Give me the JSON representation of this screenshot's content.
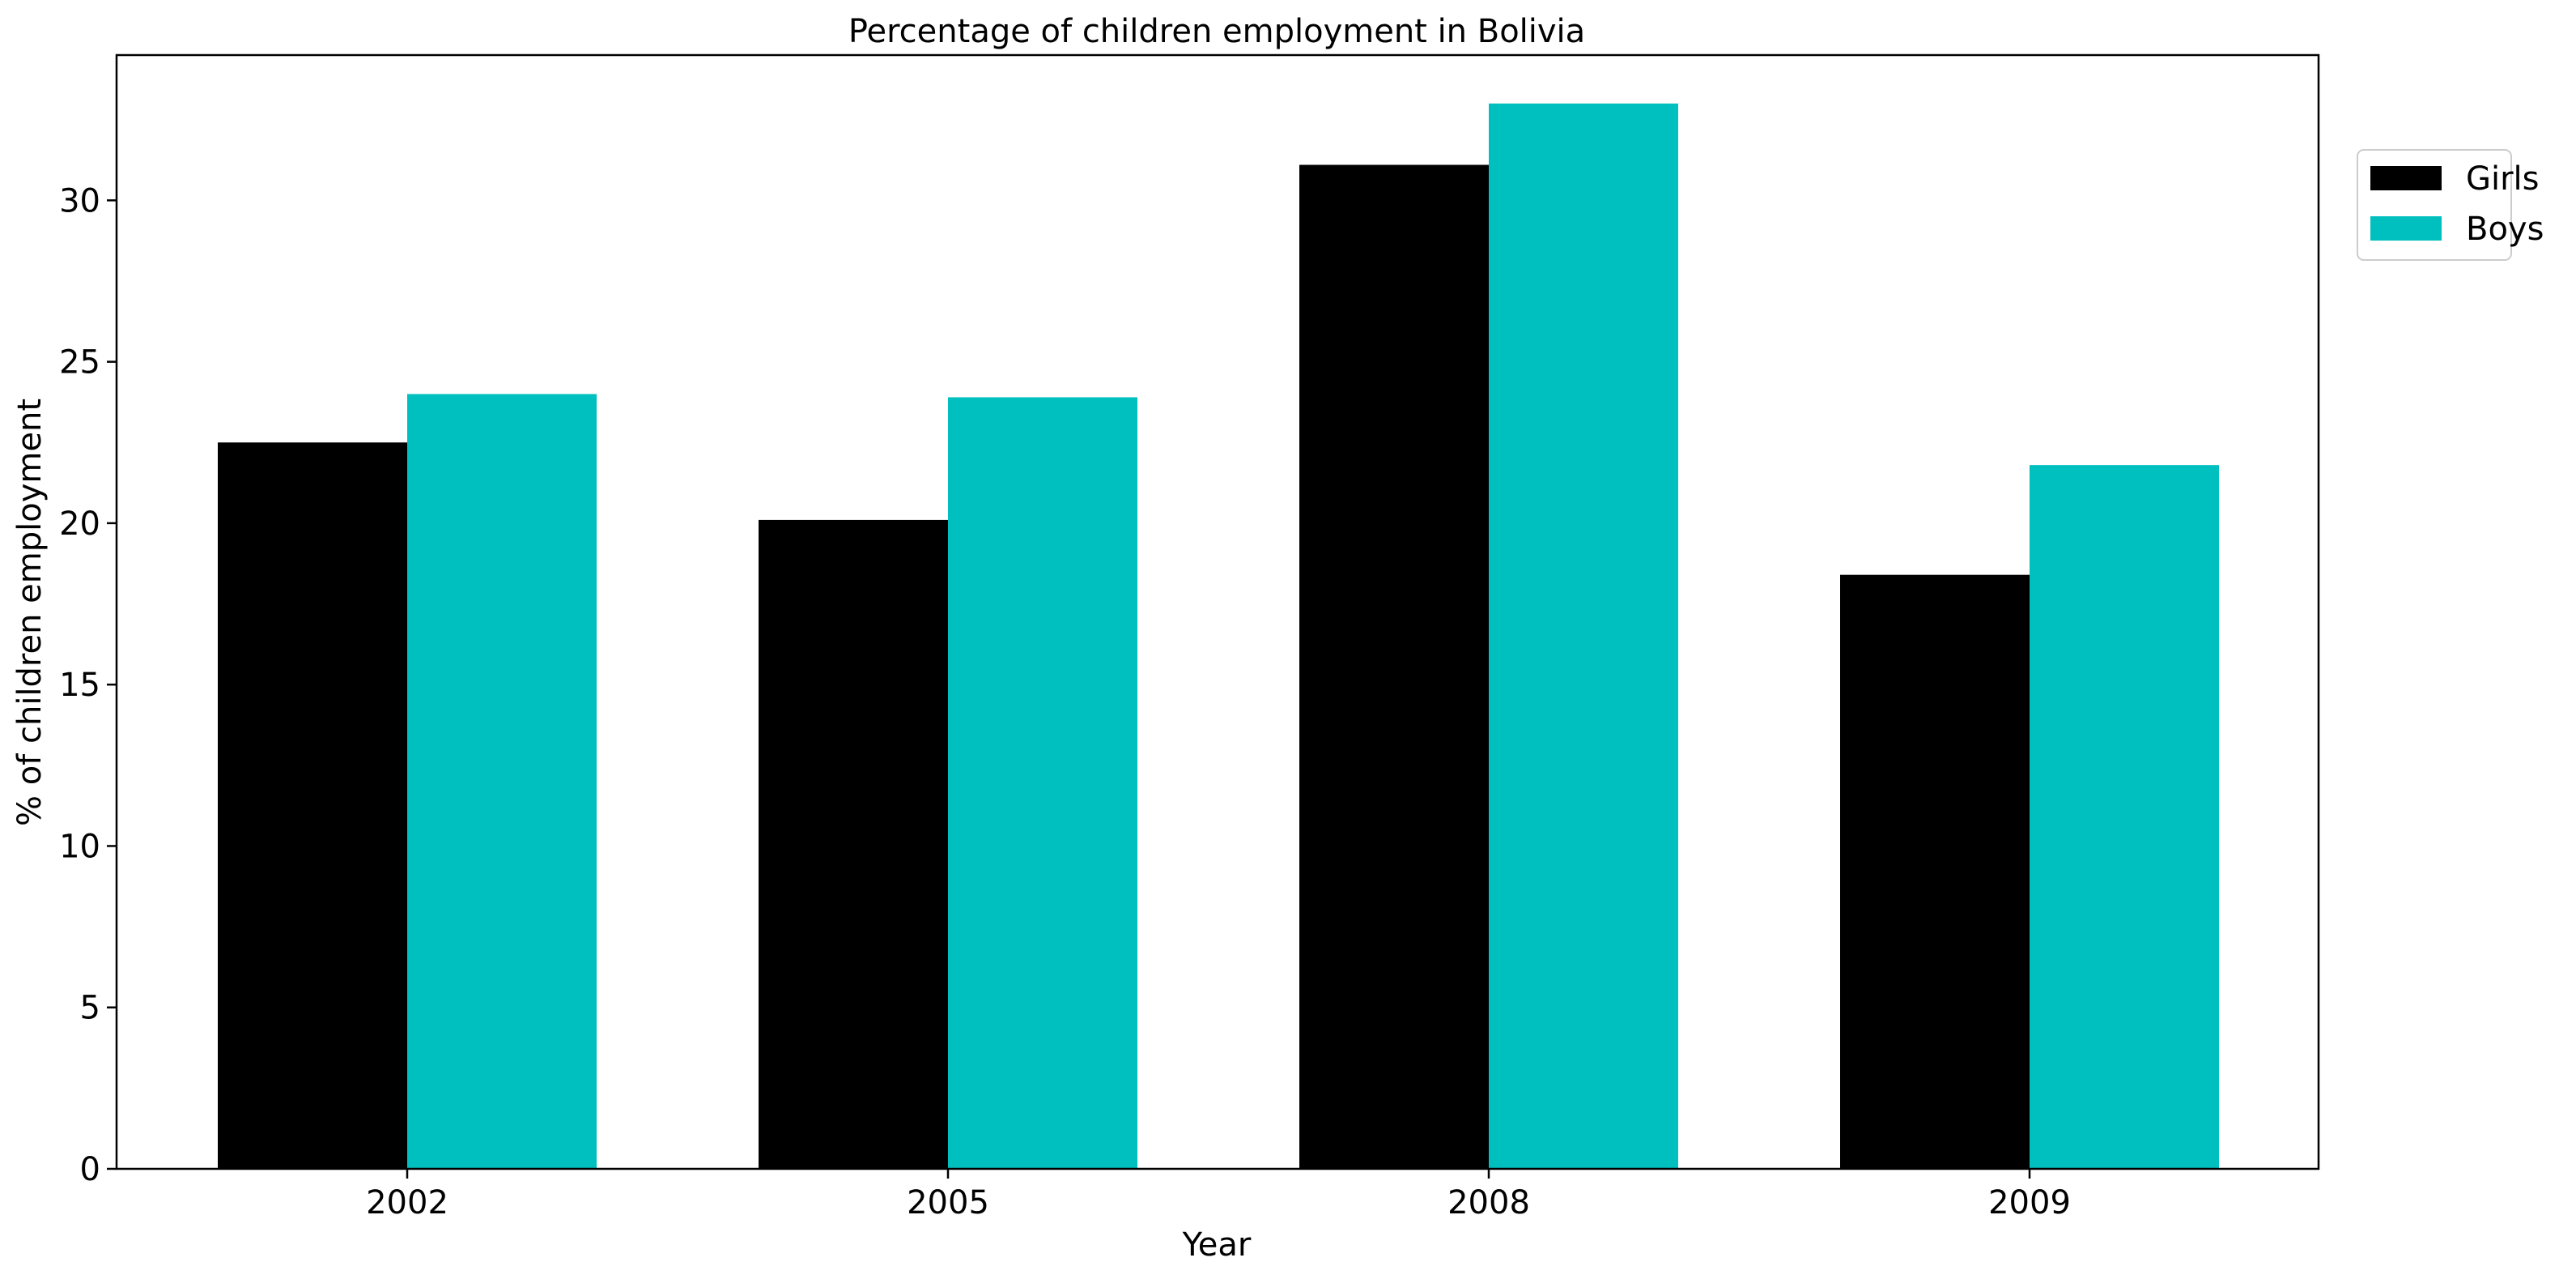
{
  "chart_data": {
    "type": "bar",
    "title": "Percentage of children employment in Bolivia",
    "xlabel": "Year",
    "ylabel": "% of children employment",
    "categories": [
      "2002",
      "2005",
      "2008",
      "2009"
    ],
    "series": [
      {
        "name": "Girls",
        "values": [
          22.5,
          20.1,
          31.1,
          18.4
        ],
        "color": "#000000"
      },
      {
        "name": "Boys",
        "values": [
          24.0,
          23.9,
          33.0,
          21.8
        ],
        "color": "#00bfbf"
      }
    ],
    "ylim": [
      0,
      34.5
    ],
    "yticks": [
      0,
      5,
      10,
      15,
      20,
      25,
      30
    ],
    "grid": false,
    "legend": "upper right, outside plot"
  }
}
